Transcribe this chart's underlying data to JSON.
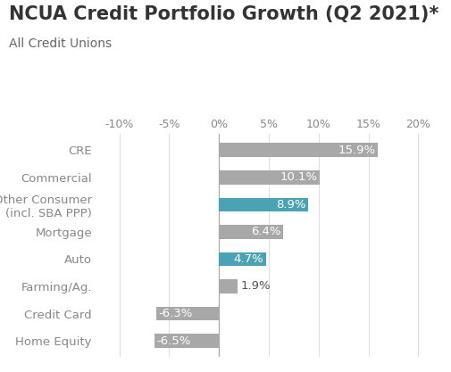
{
  "title": "NCUA Credit Portfolio Growth (Q2 2021)*",
  "subtitle": "All Credit Unions",
  "categories": [
    "CRE",
    "Commercial",
    "Other Consumer\n(incl. SBA PPP)",
    "Mortgage",
    "Auto",
    "Farming/Ag.",
    "Credit Card",
    "Home Equity"
  ],
  "values": [
    15.9,
    10.1,
    8.9,
    6.4,
    4.7,
    1.9,
    -6.3,
    -6.5
  ],
  "colors": [
    "#a8a8a8",
    "#a8a8a8",
    "#4aa3b5",
    "#a8a8a8",
    "#4aa3b5",
    "#a8a8a8",
    "#a8a8a8",
    "#a8a8a8"
  ],
  "labels": [
    "15.9%",
    "10.1%",
    "8.9%",
    "6.4%",
    "4.7%",
    "1.9%",
    "-6.3%",
    "-6.5%"
  ],
  "label_inside": [
    true,
    true,
    true,
    true,
    true,
    false,
    true,
    true
  ],
  "xlim": [
    -12,
    22
  ],
  "xticks": [
    -10,
    -5,
    0,
    5,
    10,
    15,
    20
  ],
  "xticklabels": [
    "-10%",
    "-5%",
    "0%",
    "5%",
    "10%",
    "15%",
    "20%"
  ],
  "background_color": "#ffffff",
  "title_fontsize": 15,
  "subtitle_fontsize": 10,
  "label_fontsize": 9.5,
  "tick_fontsize": 9,
  "bar_height": 0.52,
  "title_color": "#333333",
  "subtitle_color": "#666666",
  "tick_color": "#888888",
  "label_color_inside": "#ffffff",
  "label_color_outside": "#555555",
  "grid_color": "#dddddd",
  "zeroline_color": "#aaaaaa"
}
